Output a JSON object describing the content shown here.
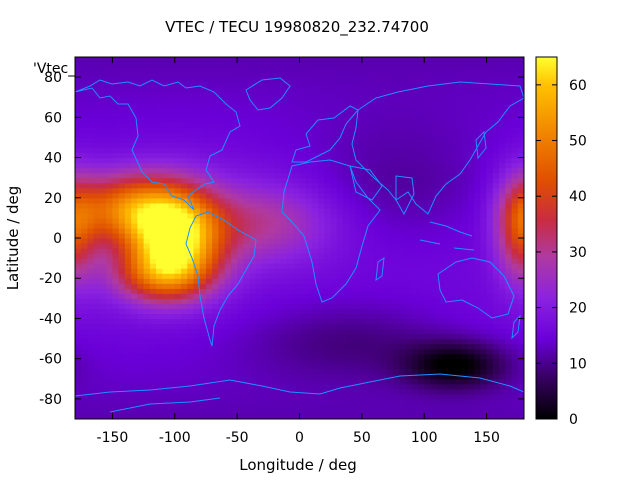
{
  "chart_data": {
    "type": "heatmap",
    "title": "VTEC / TECU 19980820_232.74700",
    "xlabel": "Longitude / deg",
    "ylabel": "Latitude / deg",
    "series_label": "'Vtec_",
    "xlim": [
      -180,
      180
    ],
    "ylim": [
      -90,
      90
    ],
    "x_ticks": [
      -150,
      -100,
      -50,
      0,
      50,
      100,
      150
    ],
    "y_ticks": [
      -80,
      -60,
      -40,
      -20,
      0,
      20,
      40,
      60,
      80
    ],
    "colorbar": {
      "min": 0,
      "max": 65,
      "ticks": [
        0,
        10,
        20,
        30,
        40,
        50,
        60
      ]
    },
    "colormap": [
      "#000000",
      "#3a0066",
      "#6a00d8",
      "#8a22e0",
      "#a63ab8",
      "#c02c5a",
      "#d84000",
      "#f07800",
      "#ffb000",
      "#ffff00"
    ],
    "coastline_color": "#1e90ff",
    "tec_features": [
      {
        "region": "background_low_latitude",
        "lon": 0,
        "lat": 0,
        "value": 16
      },
      {
        "region": "crest_south_america",
        "lon": -100,
        "lat": 2,
        "value": 64
      },
      {
        "region": "crest_pacific_north",
        "lon": -140,
        "lat": 15,
        "value": 45
      },
      {
        "region": "band_atlantic",
        "lon": -30,
        "lat": 8,
        "value": 30
      },
      {
        "region": "crest_south_pacific",
        "lon": -110,
        "lat": -18,
        "value": 40
      },
      {
        "region": "date_line_east",
        "lon": 178,
        "lat": 5,
        "value": 40
      },
      {
        "region": "trough_antarctic",
        "lon": 125,
        "lat": -63,
        "value": 2
      },
      {
        "region": "low_northern_asia",
        "lon": 80,
        "lat": 30,
        "value": 11
      },
      {
        "region": "low_south_of_africa",
        "lon": 40,
        "lat": -50,
        "value": 10
      }
    ]
  }
}
